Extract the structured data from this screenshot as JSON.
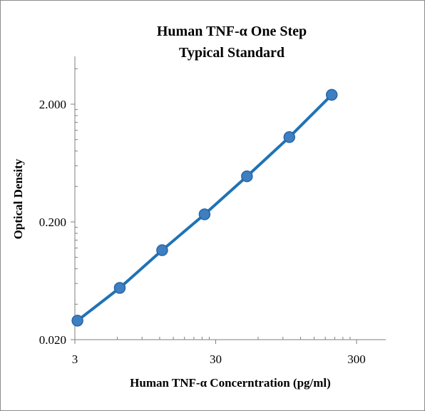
{
  "chart_data": {
    "type": "scatter",
    "title": [
      "Human TNF-α One Step",
      "Typical Standard"
    ],
    "xlabel": "Human TNF-α Concerntration (pg/ml)",
    "ylabel": "Optical Density",
    "x_scale": "log",
    "y_scale": "log",
    "xlim": [
      3,
      300
    ],
    "ylim": [
      0.02,
      2
    ],
    "x_ticks": [
      "3",
      "30",
      "300"
    ],
    "y_ticks": [
      "2.000",
      "0.200",
      "0.020"
    ],
    "grid": false,
    "legend": "none",
    "series": [
      {
        "x": [
          3.13,
          6.25,
          12.5,
          25,
          50,
          100,
          200
        ],
        "y": [
          0.029,
          0.055,
          0.115,
          0.232,
          0.488,
          1.05,
          2.4
        ]
      }
    ],
    "colors": {
      "line": "#1f73b5",
      "marker": "#3d7fc1",
      "marker_edge": "#2866a6",
      "axis": "#7f7f7f",
      "text": "#000000"
    }
  }
}
